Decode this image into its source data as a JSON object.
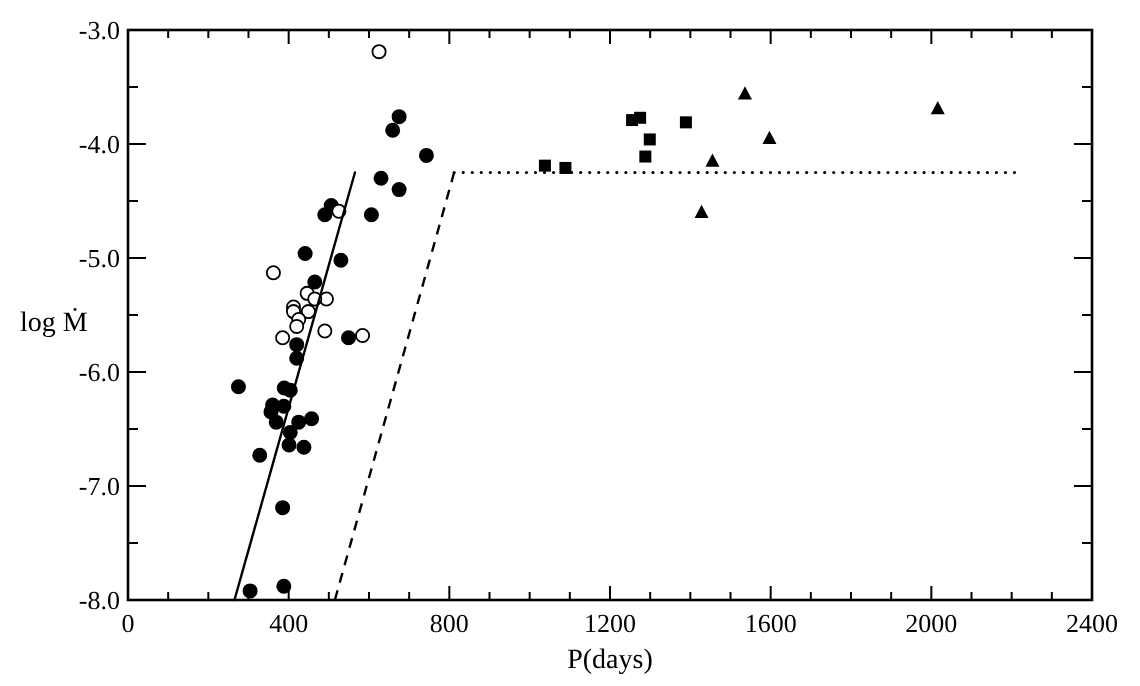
{
  "chart_data": {
    "type": "scatter",
    "xlabel": "P(days)",
    "ylabel": "log Ṁ",
    "xlim": [
      0,
      2400
    ],
    "ylim": [
      -8,
      -3
    ],
    "xticks": [
      0,
      {
        "value": 100,
        "label": null
      },
      {
        "value": 200,
        "label": null
      },
      {
        "value": 300,
        "label": null
      },
      400,
      {
        "value": 500,
        "label": null
      },
      {
        "value": 600,
        "label": null
      },
      {
        "value": 700,
        "label": null
      },
      800,
      {
        "value": 900,
        "label": null
      },
      {
        "value": 1000,
        "label": null
      },
      {
        "value": 1100,
        "label": null
      },
      1200,
      {
        "value": 1300,
        "label": null
      },
      {
        "value": 1400,
        "label": null
      },
      {
        "value": 1500,
        "label": null
      },
      1600,
      {
        "value": 1700,
        "label": null
      },
      {
        "value": 1800,
        "label": null
      },
      {
        "value": 1900,
        "label": null
      },
      2000,
      {
        "value": 2100,
        "label": null
      },
      {
        "value": 2200,
        "label": null
      },
      {
        "value": 2300,
        "label": null
      },
      2400
    ],
    "yticks": [
      {
        "value": -8,
        "label": "-8.0"
      },
      {
        "value": -7.5,
        "label": null
      },
      {
        "value": -7,
        "label": "-7.0"
      },
      {
        "value": -6.5,
        "label": null
      },
      {
        "value": -6,
        "label": "-6.0"
      },
      {
        "value": -5.5,
        "label": null
      },
      {
        "value": -5,
        "label": "-5.0"
      },
      {
        "value": -4.5,
        "label": null
      },
      {
        "value": -4,
        "label": "-4.0"
      },
      {
        "value": -3.5,
        "label": null
      },
      {
        "value": -3,
        "label": "-3.0"
      }
    ],
    "grid": false,
    "series": [
      {
        "type": "scatter",
        "marker": "circle",
        "color": "#000000",
        "x": [
          675,
          659,
          743,
          630,
          675,
          506,
          490,
          606,
          441,
          530,
          465,
          549,
          420,
          420,
          275,
          389,
          404,
          360,
          388,
          356,
          369,
          457,
          425,
          404,
          401,
          438,
          328,
          385,
          304,
          388
        ],
        "values": [
          -3.76,
          -3.88,
          -4.1,
          -4.3,
          -4.4,
          -4.54,
          -4.62,
          -4.62,
          -4.96,
          -5.02,
          -5.21,
          -5.7,
          -5.76,
          -5.88,
          -6.13,
          -6.14,
          -6.16,
          -6.29,
          -6.3,
          -6.35,
          -6.44,
          -6.41,
          -6.44,
          -6.53,
          -6.64,
          -6.66,
          -6.73,
          -7.19,
          -7.92,
          -7.88
        ]
      },
      {
        "type": "scatter",
        "marker": "circle",
        "color": "#ffffff",
        "x": [
          625,
          525,
          362,
          446,
          494,
          465,
          412,
          412,
          449,
          425,
          420,
          490,
          385,
          584
        ],
        "values": [
          -3.19,
          -4.59,
          -5.13,
          -5.31,
          -5.36,
          -5.36,
          -5.43,
          -5.47,
          -5.47,
          -5.54,
          -5.6,
          -5.64,
          -5.7,
          -5.68
        ]
      },
      {
        "type": "scatter",
        "marker": "square",
        "color": "#000000",
        "x": [
          1038,
          1089,
          1255,
          1275,
          1299,
          1288,
          1389
        ],
        "values": [
          -4.19,
          -4.21,
          -3.79,
          -3.77,
          -3.96,
          -4.11,
          -3.81
        ]
      },
      {
        "type": "scatter",
        "marker": "triangle",
        "color": "#000000",
        "x": [
          1428,
          1455,
          1536,
          1597,
          2016
        ],
        "values": [
          -4.6,
          -4.15,
          -3.56,
          -3.95,
          -3.69
        ]
      },
      {
        "type": "line",
        "marker": "none",
        "line_style": "solid",
        "color": "#000000",
        "x": [
          265,
          565
        ],
        "values": [
          -8,
          -4.25
        ]
      },
      {
        "type": "line",
        "marker": "none",
        "line_style": "dashed",
        "color": "#000000",
        "x": [
          515,
          812
        ],
        "values": [
          -8,
          -4.25
        ]
      },
      {
        "type": "line",
        "marker": "none",
        "line_style": "dotted",
        "color": "#000000",
        "x": [
          812,
          2207
        ],
        "values": [
          -4.25,
          -4.25
        ]
      }
    ]
  }
}
